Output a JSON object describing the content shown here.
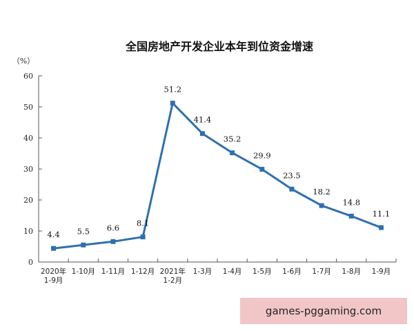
{
  "chart_data": {
    "type": "line",
    "title": "全国房地产开发企业本年到位资金增速",
    "ylabel": "（%）",
    "ylim": [
      0,
      60
    ],
    "yticks": [
      "0",
      "10",
      "20",
      "30",
      "40",
      "50",
      "60"
    ],
    "categories": [
      [
        "2020年",
        "1-9月"
      ],
      [
        "1-10月"
      ],
      [
        "1-11月"
      ],
      [
        "1-12月"
      ],
      [
        "2021年",
        "1-2月"
      ],
      [
        "1-3月"
      ],
      [
        "1-4月"
      ],
      [
        "1-5月"
      ],
      [
        "1-6月"
      ],
      [
        "1-7月"
      ],
      [
        "1-8月"
      ],
      [
        "1-9月"
      ]
    ],
    "values": [
      4.4,
      5.5,
      6.6,
      8.1,
      51.2,
      41.4,
      35.2,
      29.9,
      23.5,
      18.2,
      14.8,
      11.1
    ],
    "labels": [
      "4.4",
      "5.5",
      "6.6",
      "8.1",
      "51.2",
      "41.4",
      "35.2",
      "29.9",
      "23.5",
      "18.2",
      "14.8",
      "11.1"
    ],
    "grid": false,
    "line_color": "#2e6fb0"
  },
  "watermark": "games-pggaming.com"
}
